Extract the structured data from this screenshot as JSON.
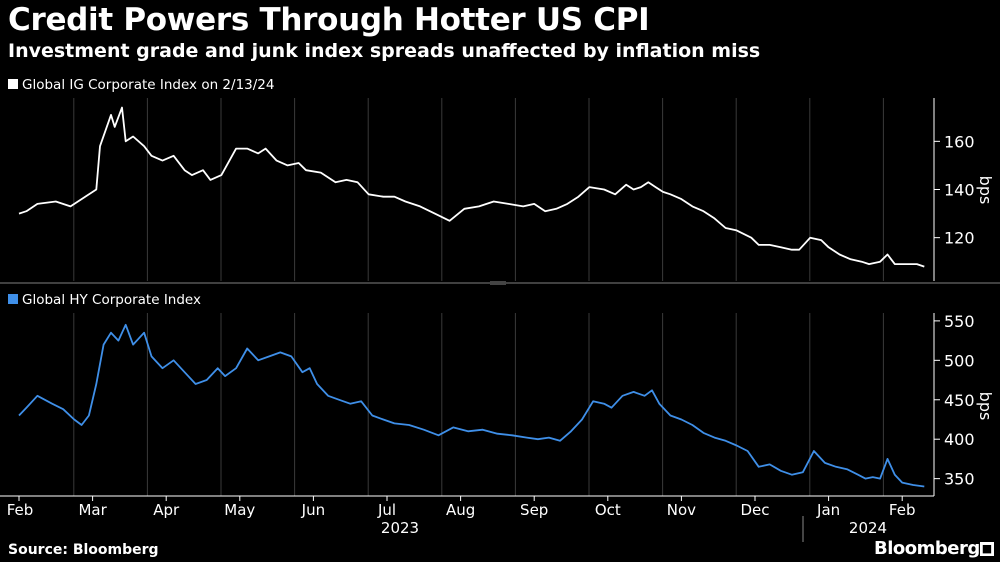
{
  "header": {
    "title": "Credit Powers Through Hotter US CPI",
    "subtitle": "Investment grade and junk index spreads unaffected by inflation miss"
  },
  "footer": {
    "source": "Source: Bloomberg",
    "brand": "Bloomberg",
    "brand_mark": "■"
  },
  "colors": {
    "ig": "#ffffff",
    "hy": "#3f8fe8",
    "background": "#000000",
    "grid": "#3a3a3a"
  },
  "chart_data": [
    {
      "type": "line",
      "legend": "Global IG Corporate Index on 2/13/24",
      "ylabel": "bps",
      "ylim": [
        102,
        178
      ],
      "yticks": [
        120,
        140,
        160
      ],
      "x_months": [
        "Feb",
        "Mar",
        "Apr",
        "May",
        "Jun",
        "Jul",
        "Aug",
        "Sep",
        "Oct",
        "Nov",
        "Dec",
        "Jan",
        "Feb"
      ],
      "x_years": [
        "2023",
        "2024"
      ],
      "points": [
        [
          0,
          130
        ],
        [
          0.1,
          131
        ],
        [
          0.25,
          134
        ],
        [
          0.5,
          135
        ],
        [
          0.7,
          133
        ],
        [
          0.9,
          137
        ],
        [
          1.05,
          140
        ],
        [
          1.1,
          158
        ],
        [
          1.25,
          171
        ],
        [
          1.3,
          166
        ],
        [
          1.4,
          174
        ],
        [
          1.45,
          160
        ],
        [
          1.55,
          162
        ],
        [
          1.7,
          158
        ],
        [
          1.8,
          154
        ],
        [
          1.95,
          152
        ],
        [
          2.1,
          154
        ],
        [
          2.25,
          148
        ],
        [
          2.35,
          146
        ],
        [
          2.5,
          148
        ],
        [
          2.6,
          144
        ],
        [
          2.75,
          146
        ],
        [
          2.95,
          157
        ],
        [
          3.1,
          157
        ],
        [
          3.25,
          155
        ],
        [
          3.35,
          157
        ],
        [
          3.5,
          152
        ],
        [
          3.65,
          150
        ],
        [
          3.8,
          151
        ],
        [
          3.9,
          148
        ],
        [
          4.1,
          147
        ],
        [
          4.3,
          143
        ],
        [
          4.45,
          144
        ],
        [
          4.6,
          143
        ],
        [
          4.75,
          138
        ],
        [
          4.95,
          137
        ],
        [
          5.1,
          137
        ],
        [
          5.25,
          135
        ],
        [
          5.45,
          133
        ],
        [
          5.65,
          130
        ],
        [
          5.85,
          127
        ],
        [
          6.05,
          132
        ],
        [
          6.25,
          133
        ],
        [
          6.45,
          135
        ],
        [
          6.65,
          134
        ],
        [
          6.85,
          133
        ],
        [
          7.0,
          134
        ],
        [
          7.15,
          131
        ],
        [
          7.3,
          132
        ],
        [
          7.45,
          134
        ],
        [
          7.6,
          137
        ],
        [
          7.75,
          141
        ],
        [
          7.95,
          140
        ],
        [
          8.1,
          138
        ],
        [
          8.25,
          142
        ],
        [
          8.35,
          140
        ],
        [
          8.45,
          141
        ],
        [
          8.55,
          143
        ],
        [
          8.65,
          141
        ],
        [
          8.75,
          139
        ],
        [
          8.85,
          138
        ],
        [
          9.0,
          136
        ],
        [
          9.15,
          133
        ],
        [
          9.3,
          131
        ],
        [
          9.45,
          128
        ],
        [
          9.6,
          124
        ],
        [
          9.75,
          123
        ],
        [
          9.95,
          120
        ],
        [
          10.05,
          117
        ],
        [
          10.2,
          117
        ],
        [
          10.35,
          116
        ],
        [
          10.5,
          115
        ],
        [
          10.6,
          115
        ],
        [
          10.75,
          120
        ],
        [
          10.9,
          119
        ],
        [
          11.0,
          116
        ],
        [
          11.15,
          113
        ],
        [
          11.3,
          111
        ],
        [
          11.45,
          110
        ],
        [
          11.55,
          109
        ],
        [
          11.7,
          110
        ],
        [
          11.8,
          113
        ],
        [
          11.9,
          109
        ],
        [
          12.05,
          109
        ],
        [
          12.2,
          109
        ],
        [
          12.3,
          108
        ]
      ]
    },
    {
      "type": "line",
      "legend": "Global HY Corporate Index",
      "ylabel": "bps",
      "ylim": [
        328,
        560
      ],
      "yticks": [
        350,
        400,
        450,
        500,
        550
      ],
      "x_months": [
        "Feb",
        "Mar",
        "Apr",
        "May",
        "Jun",
        "Jul",
        "Aug",
        "Sep",
        "Oct",
        "Nov",
        "Dec",
        "Jan",
        "Feb"
      ],
      "x_years": [
        "2023",
        "2024"
      ],
      "points": [
        [
          0,
          430
        ],
        [
          0.1,
          440
        ],
        [
          0.25,
          455
        ],
        [
          0.45,
          445
        ],
        [
          0.6,
          438
        ],
        [
          0.75,
          425
        ],
        [
          0.85,
          418
        ],
        [
          0.95,
          430
        ],
        [
          1.05,
          470
        ],
        [
          1.15,
          520
        ],
        [
          1.25,
          535
        ],
        [
          1.35,
          525
        ],
        [
          1.45,
          545
        ],
        [
          1.55,
          520
        ],
        [
          1.7,
          535
        ],
        [
          1.8,
          505
        ],
        [
          1.95,
          490
        ],
        [
          2.1,
          500
        ],
        [
          2.25,
          485
        ],
        [
          2.4,
          470
        ],
        [
          2.55,
          475
        ],
        [
          2.7,
          490
        ],
        [
          2.8,
          480
        ],
        [
          2.95,
          490
        ],
        [
          3.1,
          515
        ],
        [
          3.25,
          500
        ],
        [
          3.4,
          505
        ],
        [
          3.55,
          510
        ],
        [
          3.7,
          505
        ],
        [
          3.85,
          485
        ],
        [
          3.95,
          490
        ],
        [
          4.05,
          470
        ],
        [
          4.2,
          455
        ],
        [
          4.35,
          450
        ],
        [
          4.5,
          445
        ],
        [
          4.65,
          448
        ],
        [
          4.8,
          430
        ],
        [
          4.95,
          425
        ],
        [
          5.1,
          420
        ],
        [
          5.3,
          418
        ],
        [
          5.5,
          412
        ],
        [
          5.7,
          405
        ],
        [
          5.9,
          415
        ],
        [
          6.1,
          410
        ],
        [
          6.3,
          412
        ],
        [
          6.5,
          407
        ],
        [
          6.7,
          405
        ],
        [
          6.9,
          402
        ],
        [
          7.05,
          400
        ],
        [
          7.2,
          402
        ],
        [
          7.35,
          398
        ],
        [
          7.5,
          410
        ],
        [
          7.65,
          425
        ],
        [
          7.8,
          448
        ],
        [
          7.95,
          445
        ],
        [
          8.05,
          440
        ],
        [
          8.2,
          455
        ],
        [
          8.35,
          460
        ],
        [
          8.5,
          455
        ],
        [
          8.6,
          462
        ],
        [
          8.7,
          445
        ],
        [
          8.85,
          430
        ],
        [
          9.0,
          425
        ],
        [
          9.15,
          418
        ],
        [
          9.3,
          408
        ],
        [
          9.45,
          402
        ],
        [
          9.6,
          398
        ],
        [
          9.75,
          392
        ],
        [
          9.9,
          385
        ],
        [
          10.05,
          365
        ],
        [
          10.2,
          368
        ],
        [
          10.35,
          360
        ],
        [
          10.5,
          355
        ],
        [
          10.65,
          358
        ],
        [
          10.8,
          385
        ],
        [
          10.95,
          370
        ],
        [
          11.1,
          365
        ],
        [
          11.25,
          362
        ],
        [
          11.4,
          355
        ],
        [
          11.5,
          350
        ],
        [
          11.6,
          352
        ],
        [
          11.7,
          350
        ],
        [
          11.8,
          375
        ],
        [
          11.9,
          355
        ],
        [
          12.0,
          345
        ],
        [
          12.15,
          342
        ],
        [
          12.3,
          340
        ]
      ]
    }
  ]
}
